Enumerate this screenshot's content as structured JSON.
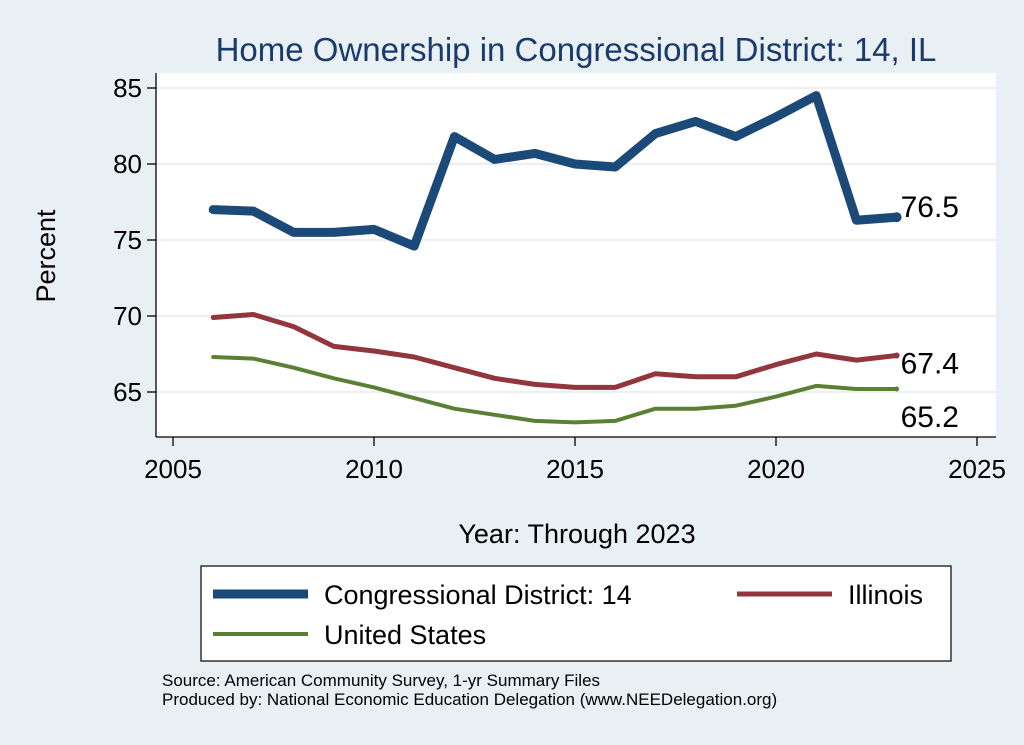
{
  "chart_data": {
    "type": "line",
    "title": "Home Ownership in Congressional District:  14, IL",
    "xlabel": "Year: Through 2023",
    "ylabel": "Percent",
    "xlim": [
      2005,
      2025
    ],
    "ylim": [
      62.5,
      86
    ],
    "xticks": [
      2005,
      2010,
      2015,
      2020,
      2025
    ],
    "yticks": [
      65,
      70,
      75,
      80,
      85
    ],
    "grid": true,
    "x": [
      2006,
      2007,
      2008,
      2009,
      2010,
      2011,
      2012,
      2013,
      2014,
      2015,
      2016,
      2017,
      2018,
      2019,
      2020,
      2021,
      2022,
      2023
    ],
    "series": [
      {
        "name": "Congressional District:  14",
        "color": "#1c4a78",
        "values": [
          77.0,
          76.9,
          75.5,
          75.5,
          75.7,
          74.6,
          81.8,
          80.3,
          80.7,
          80.0,
          79.8,
          82.0,
          82.8,
          81.8,
          83.1,
          84.5,
          76.3,
          76.5
        ],
        "end_label": "76.5"
      },
      {
        "name": "Illinois",
        "color": "#93363c",
        "values": [
          69.9,
          70.1,
          69.3,
          68.0,
          67.7,
          67.3,
          66.6,
          65.9,
          65.5,
          65.3,
          65.3,
          66.2,
          66.0,
          66.0,
          66.8,
          67.5,
          67.1,
          67.4
        ],
        "end_label": "67.4"
      },
      {
        "name": "United States",
        "color": "#5b8034",
        "values": [
          67.3,
          67.2,
          66.6,
          65.9,
          65.3,
          64.6,
          63.9,
          63.5,
          63.1,
          63.0,
          63.1,
          63.9,
          63.9,
          64.1,
          64.7,
          65.4,
          65.2,
          65.2
        ],
        "end_label": "65.2"
      }
    ],
    "legend": "bottom"
  },
  "source": {
    "line1": "Source: American Community Survey, 1-yr Summary Files",
    "line2": "Produced by: National Economic Education Delegation (www.NEEDelegation.org)"
  }
}
